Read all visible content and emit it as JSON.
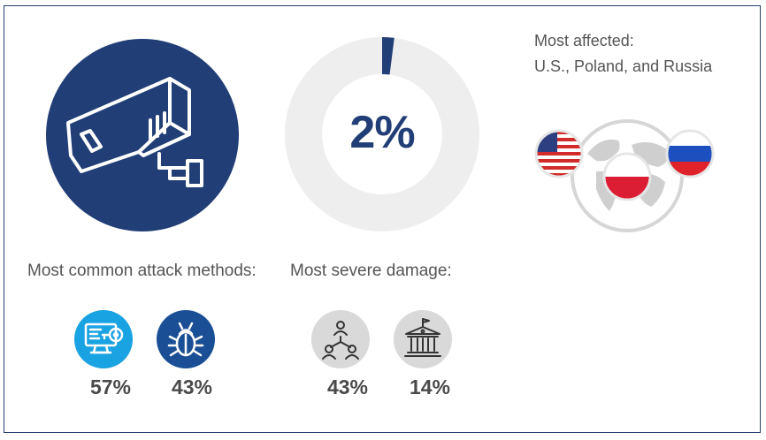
{
  "donut": {
    "value_percent": 2,
    "label": "2%"
  },
  "affected": {
    "title": "Most affected:",
    "countries": "U.S., Poland, and Russia",
    "flags": [
      "us-flag-icon",
      "poland-flag-icon",
      "russia-flag-icon"
    ]
  },
  "methods": {
    "label": "Most common attack methods:",
    "items": [
      {
        "icon": "computer-key-icon",
        "value": "57%"
      },
      {
        "icon": "bug-icon",
        "value": "43%"
      }
    ]
  },
  "damage": {
    "label": "Most severe damage:",
    "items": [
      {
        "icon": "people-network-icon",
        "value": "43%"
      },
      {
        "icon": "government-building-icon",
        "value": "14%"
      }
    ]
  },
  "colors": {
    "navy": "#213e76",
    "light_blue": "#1aa3e2",
    "medium_blue": "#1a4f96",
    "gray_ring": "#efeeee",
    "gray_icon_bg": "#d9d9d9"
  }
}
